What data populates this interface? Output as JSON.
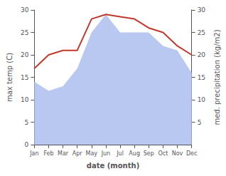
{
  "chart_data": {
    "type": "line",
    "categories": [
      "Jan",
      "Feb",
      "Mar",
      "Apr",
      "May",
      "Jun",
      "Jul",
      "Aug",
      "Sep",
      "Oct",
      "Nov",
      "Dec"
    ],
    "xlabel": "date (month)",
    "ylabel": "max temp (C)",
    "y2label": "med. precipitation (kg/m2)",
    "ylim": [
      0,
      30
    ],
    "yticks": [
      0,
      5,
      10,
      15,
      20,
      25,
      30
    ],
    "y2lim": [
      0,
      30
    ],
    "y2ticks": [
      5,
      10,
      15,
      20,
      25,
      30
    ],
    "grid": false,
    "series": [
      {
        "type": "area",
        "color": "#b8c8f0",
        "axis": "y2",
        "values": [
          14,
          12,
          13,
          17,
          25,
          29,
          25,
          25,
          25,
          22,
          21,
          16
        ]
      },
      {
        "type": "line",
        "color": "#c0392b",
        "values": [
          17,
          20,
          21,
          21,
          28,
          29,
          28.5,
          28,
          26,
          25,
          22,
          20
        ]
      }
    ]
  }
}
